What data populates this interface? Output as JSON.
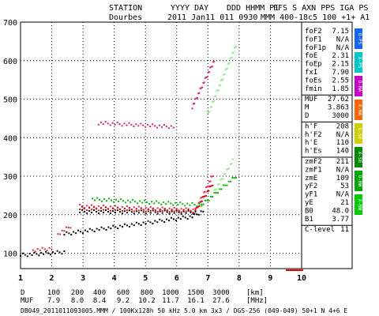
{
  "header": {
    "col1": [
      "STATION",
      "Dourbes"
    ],
    "col2": [
      "YYYY DAY",
      "2011 Jan11 011 0930"
    ],
    "col3": [
      "DDD HHMM P1",
      "MMM 400-1"
    ],
    "col4": [
      "FFS S AXN PPS IGA PS",
      "8c5 100 +1+ A1"
    ]
  },
  "params": [
    {
      "k": "foF2",
      "v": "7.15"
    },
    {
      "k": "foF1",
      "v": "N/A"
    },
    {
      "k": "foF1p",
      "v": "N/A"
    },
    {
      "k": "foE",
      "v": "2.31"
    },
    {
      "k": "foEp",
      "v": "2.15"
    },
    {
      "k": "fxI",
      "v": "7.90"
    },
    {
      "k": "foEs",
      "v": "2.55"
    },
    {
      "k": "fmin",
      "v": "1.85"
    },
    {
      "k": "",
      "v": "",
      "sep": true
    },
    {
      "k": "MUF",
      "v": "27.62"
    },
    {
      "k": "M",
      "v": "3.863"
    },
    {
      "k": "D",
      "v": "3000"
    },
    {
      "k": "",
      "v": "",
      "sep": true
    },
    {
      "k": "h'F",
      "v": "208"
    },
    {
      "k": "h'F2",
      "v": "N/A"
    },
    {
      "k": "h'E",
      "v": "110"
    },
    {
      "k": "h'Es",
      "v": "140"
    },
    {
      "k": "",
      "v": "",
      "sep": true
    },
    {
      "k": "zmF2",
      "v": "211"
    },
    {
      "k": "zmF1",
      "v": "N/A"
    },
    {
      "k": "zmE",
      "v": "109"
    },
    {
      "k": "yF2",
      "v": "53"
    },
    {
      "k": "yF1",
      "v": "N/A"
    },
    {
      "k": "yE",
      "v": "21"
    },
    {
      "k": "B0",
      "v": "48.0"
    },
    {
      "k": "B1",
      "v": "3.77"
    },
    {
      "k": "",
      "v": "",
      "sep": true
    },
    {
      "k": "C-level",
      "v": "11"
    }
  ],
  "legend": [
    {
      "label": "O-PS",
      "color": "#1464ff"
    },
    {
      "label": "X-PS",
      "color": "#00c8c8"
    },
    {
      "label": "O-NA",
      "color": "#c800c8"
    },
    {
      "label": "X-NA",
      "color": "#ff6400"
    },
    {
      "label": "O-SE",
      "color": "#d0d000"
    },
    {
      "label": "X-SE",
      "color": "#008c00"
    },
    {
      "label": "O-NW",
      "color": "#00aa00"
    },
    {
      "label": "X-NW",
      "color": "#00d000"
    }
  ],
  "muf_table": {
    "row1_label": "D",
    "row1": [
      "100",
      "200",
      "400",
      "600",
      "800",
      "1000",
      "1500",
      "3000"
    ],
    "row1_unit": "[km]",
    "row2_label": "MUF",
    "row2": [
      "7.9",
      "8.0",
      "8.4",
      "9.2",
      "10.2",
      "11.7",
      "16.1",
      "27.6"
    ],
    "row2_unit": "[MHz]"
  },
  "footer": "DB049_2011011093005.MMM / 100Kx128h 50 kHz 5.0 km 3x3 / DGS-256 (049-049) 50+1 N 4+6 E",
  "chart_data": {
    "type": "scatter",
    "title": "",
    "xlabel": "",
    "ylabel": "",
    "xlim": [
      1,
      10
    ],
    "ylim": [
      60,
      700
    ],
    "x_ticks": [
      1,
      2,
      3,
      4,
      5,
      6,
      7,
      8,
      9,
      10
    ],
    "y_ticks": [
      100,
      200,
      300,
      400,
      500,
      600,
      700
    ],
    "grid": true,
    "series": [
      {
        "color": "#ff2050",
        "segments": [
          {
            "x": [
              2.9,
              6.6
            ],
            "y": [
              222,
              212
            ]
          },
          {
            "x": [
              6.6,
              7.15
            ],
            "y": [
              212,
              300
            ]
          }
        ]
      },
      {
        "color": "#e00000",
        "segments": [
          {
            "x": [
              2.9,
              6.6
            ],
            "y": [
              216,
              210
            ]
          },
          {
            "x": [
              6.6,
              7.15
            ],
            "y": [
              210,
              280
            ]
          }
        ]
      },
      {
        "color": "#00bb00",
        "segments": [
          {
            "x": [
              3.3,
              6.8
            ],
            "y": [
              240,
              225
            ]
          },
          {
            "x": [
              6.8,
              7.9
            ],
            "y": [
              225,
              300
            ]
          }
        ]
      },
      {
        "color": "#e0208a",
        "segments": [
          {
            "x": [
              3.5,
              5.9
            ],
            "y": [
              438,
              428
            ]
          },
          {
            "x": [
              6.5,
              7.2
            ],
            "y": [
              480,
              600
            ]
          }
        ]
      },
      {
        "color": "#e03030",
        "segments": [
          {
            "x": [
              1.4,
              2.0
            ],
            "y": [
              108,
              112
            ]
          },
          {
            "x": [
              2.2,
              2.6
            ],
            "y": [
              150,
              170
            ]
          }
        ]
      },
      {
        "color": "#90f090",
        "segments": [
          {
            "x": [
              7.0,
              7.9
            ],
            "y": [
              460,
              640
            ]
          },
          {
            "x": [
              7.2,
              7.8
            ],
            "y": [
              260,
              340
            ]
          }
        ]
      },
      {
        "color": "#000000",
        "segments": [
          {
            "x": [
              1.0,
              2.4
            ],
            "y": [
              95,
              103
            ]
          },
          {
            "x": [
              2.4,
              6.5
            ],
            "y": [
              150,
              195
            ]
          },
          {
            "x": [
              6.5,
              6.85
            ],
            "y": [
              195,
              210
            ]
          },
          {
            "x": [
              2.9,
              6.6
            ],
            "y": [
              208,
              206
            ]
          }
        ]
      }
    ]
  }
}
